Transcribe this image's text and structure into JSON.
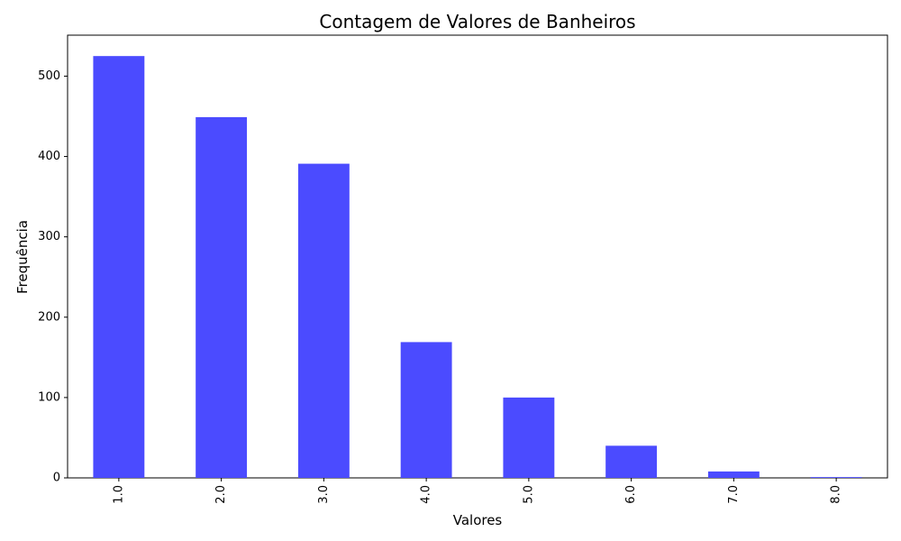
{
  "chart_data": {
    "type": "bar",
    "title": "Contagem de Valores de Banheiros",
    "xlabel": "Valores",
    "ylabel": "Frequência",
    "categories": [
      "1.0",
      "2.0",
      "3.0",
      "4.0",
      "5.0",
      "6.0",
      "7.0",
      "8.0"
    ],
    "values": [
      525,
      449,
      391,
      169,
      100,
      40,
      8,
      1
    ],
    "ylim": [
      0,
      551
    ],
    "yticks": [
      "0",
      "100",
      "200",
      "300",
      "400",
      "500"
    ],
    "bar_color": "#4b4bff",
    "grid": false,
    "legend": "none"
  }
}
